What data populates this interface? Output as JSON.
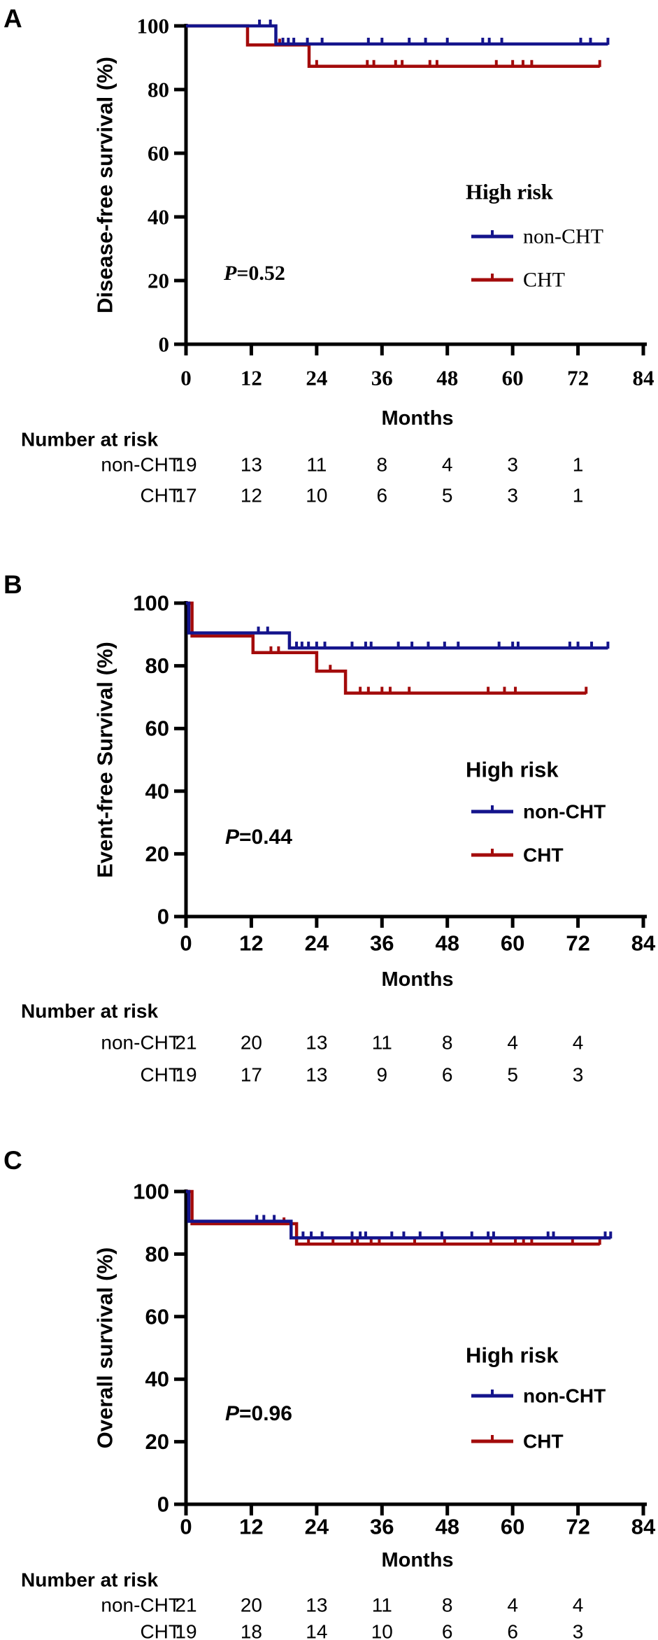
{
  "figure": {
    "description_title": "Kaplan-Meier survival curves, high risk group, CHT vs non-CHT",
    "colors": {
      "non_cht": "#14148C",
      "cht": "#A30B0B",
      "axis": "#000000",
      "background": "#FFFFFF"
    }
  },
  "chart_data": [
    {
      "type": "line",
      "subtype": "kaplan-meier-step",
      "panel_label": "A",
      "ylabel": "Disease-free survival (%)",
      "xlabel": "Months",
      "xlim": [
        0,
        84
      ],
      "ylim": [
        0,
        100
      ],
      "xticks": [
        0,
        12,
        24,
        36,
        48,
        60,
        72,
        84
      ],
      "yticks": [
        0,
        20,
        40,
        60,
        80,
        100
      ],
      "grid": false,
      "legend_title": "High risk",
      "legend_position": "right-middle",
      "p_text": "P=0.52",
      "p_italic": "P",
      "p_rest": "=0.52",
      "series": [
        {
          "name": "non-CHT",
          "color": "#14148C",
          "steps": [
            [
              0,
              100
            ],
            [
              16.5,
              100
            ],
            [
              16.5,
              94.3
            ],
            [
              77.5,
              94.3
            ]
          ],
          "censor_marks": [
            [
              13.5,
              100
            ],
            [
              15.5,
              100
            ],
            [
              17.8,
              94.3
            ],
            [
              18.8,
              94.3
            ],
            [
              19.8,
              94.3
            ],
            [
              22.3,
              94.3
            ],
            [
              25,
              94.3
            ],
            [
              33.5,
              94.3
            ],
            [
              36,
              94.3
            ],
            [
              41,
              94.3
            ],
            [
              44,
              94.3
            ],
            [
              48,
              94.3
            ],
            [
              54.5,
              94.3
            ],
            [
              55.7,
              94.3
            ],
            [
              58,
              94.3
            ],
            [
              72.5,
              94.3
            ],
            [
              74.3,
              94.3
            ],
            [
              77.5,
              94.3
            ]
          ]
        },
        {
          "name": "CHT",
          "color": "#A30B0B",
          "steps": [
            [
              0,
              100
            ],
            [
              11.3,
              100
            ],
            [
              11.3,
              94.0
            ],
            [
              22.6,
              94.0
            ],
            [
              22.6,
              87.3
            ],
            [
              76,
              87.3
            ]
          ],
          "censor_marks": [
            [
              17.2,
              94.0
            ],
            [
              24,
              87.3
            ],
            [
              33.3,
              87.3
            ],
            [
              34.5,
              87.3
            ],
            [
              38.5,
              87.3
            ],
            [
              39.7,
              87.3
            ],
            [
              44.8,
              87.3
            ],
            [
              46.1,
              87.3
            ],
            [
              57,
              87.3
            ],
            [
              60,
              87.3
            ],
            [
              61.9,
              87.3
            ],
            [
              63.5,
              87.3
            ],
            [
              76,
              87.3
            ]
          ]
        }
      ],
      "number_at_risk": {
        "title": "Number at risk",
        "timepoints": [
          0,
          12,
          24,
          36,
          48,
          60,
          72
        ],
        "rows": [
          {
            "name": "non-CHT",
            "counts": [
              19,
              13,
              11,
              8,
              4,
              3,
              1
            ]
          },
          {
            "name": "CHT",
            "counts": [
              17,
              12,
              10,
              6,
              5,
              3,
              1
            ]
          }
        ]
      }
    },
    {
      "type": "line",
      "subtype": "kaplan-meier-step",
      "panel_label": "B",
      "ylabel": "Event-free Survival (%)",
      "xlabel": "Months",
      "xlim": [
        0,
        84
      ],
      "ylim": [
        0,
        100
      ],
      "xticks": [
        0,
        12,
        24,
        36,
        48,
        60,
        72,
        84
      ],
      "yticks": [
        0,
        20,
        40,
        60,
        80,
        100
      ],
      "grid": false,
      "legend_title": "High risk",
      "legend_position": "right-middle",
      "p_text": "P=0.44",
      "p_italic": "P",
      "p_rest": "=0.44",
      "series": [
        {
          "name": "non-CHT",
          "color": "#14148C",
          "steps": [
            [
              0,
              100
            ],
            [
              0.5,
              100
            ],
            [
              0.5,
              90.5
            ],
            [
              19,
              90.5
            ],
            [
              19,
              85.7
            ],
            [
              77.5,
              85.7
            ]
          ],
          "censor_marks": [
            [
              13.3,
              90.5
            ],
            [
              15,
              90.5
            ],
            [
              20.3,
              85.7
            ],
            [
              21.3,
              85.7
            ],
            [
              22.5,
              85.7
            ],
            [
              24,
              85.7
            ],
            [
              25.5,
              85.7
            ],
            [
              30.5,
              85.7
            ],
            [
              33,
              85.7
            ],
            [
              34,
              85.7
            ],
            [
              39,
              85.7
            ],
            [
              41.5,
              85.7
            ],
            [
              44.5,
              85.7
            ],
            [
              47.5,
              85.7
            ],
            [
              50,
              85.7
            ],
            [
              57.5,
              85.7
            ],
            [
              60,
              85.7
            ],
            [
              61,
              85.7
            ],
            [
              70.5,
              85.7
            ],
            [
              72,
              85.7
            ],
            [
              74.5,
              85.7
            ],
            [
              77.5,
              85.7
            ]
          ]
        },
        {
          "name": "CHT",
          "color": "#A30B0B",
          "steps": [
            [
              0,
              100
            ],
            [
              1.1,
              100
            ],
            [
              1.1,
              89.5
            ],
            [
              12.3,
              89.5
            ],
            [
              12.3,
              84.2
            ],
            [
              24,
              84.2
            ],
            [
              24,
              78.3
            ],
            [
              29.3,
              78.3
            ],
            [
              29.3,
              71.3
            ],
            [
              73.5,
              71.3
            ]
          ],
          "censor_marks": [
            [
              15.6,
              84.2
            ],
            [
              17,
              84.2
            ],
            [
              26.5,
              78.3
            ],
            [
              32,
              71.3
            ],
            [
              33.5,
              71.3
            ],
            [
              36,
              71.3
            ],
            [
              37.5,
              71.3
            ],
            [
              41,
              71.3
            ],
            [
              55.5,
              71.3
            ],
            [
              58.5,
              71.3
            ],
            [
              60.5,
              71.3
            ],
            [
              73.5,
              71.3
            ]
          ]
        }
      ],
      "number_at_risk": {
        "title": "Number at risk",
        "timepoints": [
          0,
          12,
          24,
          36,
          48,
          60,
          72
        ],
        "rows": [
          {
            "name": "non-CHT",
            "counts": [
              21,
              20,
              13,
              11,
              8,
              4,
              4
            ]
          },
          {
            "name": "CHT",
            "counts": [
              19,
              17,
              13,
              9,
              6,
              5,
              3
            ]
          }
        ]
      }
    },
    {
      "type": "line",
      "subtype": "kaplan-meier-step",
      "panel_label": "C",
      "ylabel": "Overall survival (%)",
      "xlabel": "Months",
      "xlim": [
        0,
        84
      ],
      "ylim": [
        0,
        100
      ],
      "xticks": [
        0,
        12,
        24,
        36,
        48,
        60,
        72,
        84
      ],
      "yticks": [
        0,
        20,
        40,
        60,
        80,
        100
      ],
      "grid": false,
      "legend_title": "High risk",
      "legend_position": "right-middle",
      "p_text": "P=0.96",
      "p_italic": "P",
      "p_rest": "=0.96",
      "series": [
        {
          "name": "non-CHT",
          "color": "#14148C",
          "steps": [
            [
              0,
              100
            ],
            [
              0.5,
              100
            ],
            [
              0.5,
              90.5
            ],
            [
              19.3,
              90.5
            ],
            [
              19.3,
              85.2
            ],
            [
              78,
              85.2
            ]
          ],
          "censor_marks": [
            [
              13,
              90.5
            ],
            [
              14.3,
              90.5
            ],
            [
              16.2,
              90.5
            ],
            [
              21.5,
              85.2
            ],
            [
              23,
              85.2
            ],
            [
              25,
              85.2
            ],
            [
              30.5,
              85.2
            ],
            [
              32,
              85.2
            ],
            [
              33,
              85.2
            ],
            [
              37.8,
              85.2
            ],
            [
              40,
              85.2
            ],
            [
              43,
              85.2
            ],
            [
              47,
              85.2
            ],
            [
              52.5,
              85.2
            ],
            [
              55.5,
              85.2
            ],
            [
              56.5,
              85.2
            ],
            [
              66.5,
              85.2
            ],
            [
              67.5,
              85.2
            ],
            [
              77,
              85.2
            ],
            [
              78,
              85.2
            ]
          ]
        },
        {
          "name": "CHT",
          "color": "#A30B0B",
          "steps": [
            [
              0,
              100
            ],
            [
              1.1,
              100
            ],
            [
              1.1,
              89.7
            ],
            [
              20.3,
              89.7
            ],
            [
              20.3,
              83.2
            ],
            [
              76,
              83.2
            ]
          ],
          "censor_marks": [
            [
              18,
              89.7
            ],
            [
              22.5,
              83.2
            ],
            [
              27,
              83.2
            ],
            [
              30.5,
              83.2
            ],
            [
              31.5,
              83.2
            ],
            [
              34,
              83.2
            ],
            [
              35.5,
              83.2
            ],
            [
              42,
              83.2
            ],
            [
              47.5,
              83.2
            ],
            [
              56,
              83.2
            ],
            [
              60.5,
              83.2
            ],
            [
              62,
              83.2
            ],
            [
              63.5,
              83.2
            ],
            [
              71,
              83.2
            ],
            [
              76,
              83.2
            ]
          ]
        }
      ],
      "number_at_risk": {
        "title": "Number at risk",
        "timepoints": [
          0,
          12,
          24,
          36,
          48,
          60,
          72
        ],
        "rows": [
          {
            "name": "non-CHT",
            "counts": [
              21,
              20,
              13,
              11,
              8,
              4,
              4
            ]
          },
          {
            "name": "CHT",
            "counts": [
              19,
              18,
              14,
              10,
              6,
              6,
              3
            ]
          }
        ]
      }
    }
  ]
}
